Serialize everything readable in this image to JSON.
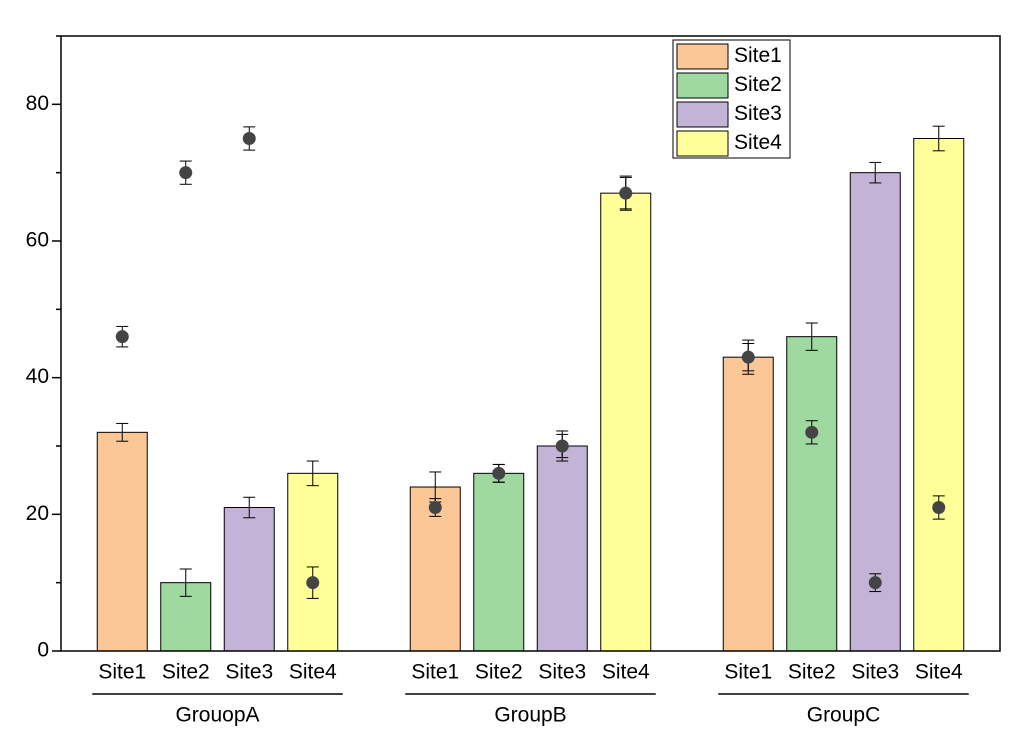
{
  "chart_data": {
    "type": "bar",
    "categories": [
      "GrouopA",
      "GroupB",
      "GroupC"
    ],
    "series": [
      {
        "name": "Site1",
        "color": "#fbc797",
        "values": [
          32,
          24,
          43
        ],
        "errors": [
          1.3,
          2.2,
          2.5
        ],
        "dots": [
          46,
          21,
          43
        ],
        "dot_errors": [
          1.5,
          1.3,
          2
        ]
      },
      {
        "name": "Site2",
        "color": "#9fd99f",
        "values": [
          10,
          26,
          46
        ],
        "errors": [
          2,
          1.3,
          2
        ],
        "dots": [
          70,
          26,
          32
        ],
        "dot_errors": [
          1.7,
          1.3,
          1.7
        ]
      },
      {
        "name": "Site3",
        "color": "#c3b3d7",
        "values": [
          21,
          30,
          70
        ],
        "errors": [
          1.5,
          2.2,
          1.5
        ],
        "dots": [
          75,
          30,
          10
        ],
        "dot_errors": [
          1.7,
          1.7,
          1.3
        ]
      },
      {
        "name": "Site4",
        "color": "#ffff99",
        "values": [
          26,
          67,
          75
        ],
        "errors": [
          1.8,
          2.5,
          1.8
        ],
        "dots": [
          10,
          67,
          21
        ],
        "dot_errors": [
          2.3,
          2.3,
          1.7
        ]
      }
    ],
    "dot_color": "#444444",
    "ylim": [
      0,
      90
    ],
    "yticks": [
      0,
      20,
      40,
      60,
      80
    ],
    "minor_yticks": [
      10,
      30,
      50,
      70,
      90
    ],
    "legend": "top-right"
  }
}
